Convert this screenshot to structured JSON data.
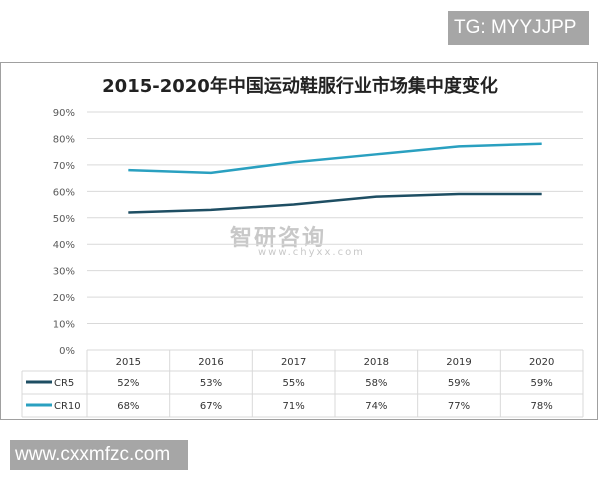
{
  "watermark_tag": "TG: MYYJJPP",
  "watermark_site": "www.cxxmfzc.com",
  "watermark_center": {
    "name": "智研咨询",
    "url": "www.chyxx.com"
  },
  "chart_data": {
    "type": "line",
    "title": "2015-2020年中国运动鞋服行业市场集中度变化",
    "categories": [
      "2015",
      "2016",
      "2017",
      "2018",
      "2019",
      "2020"
    ],
    "ylim": [
      0,
      90
    ],
    "yticks": [
      "0%",
      "10%",
      "20%",
      "30%",
      "40%",
      "50%",
      "60%",
      "70%",
      "80%",
      "90%"
    ],
    "grid": true,
    "legend": "data-table",
    "series": [
      {
        "name": "CR5",
        "values": [
          52,
          53,
          55,
          58,
          59,
          59
        ],
        "labels": [
          "52%",
          "53%",
          "55%",
          "58%",
          "59%",
          "59%"
        ],
        "color": "#1e4e63"
      },
      {
        "name": "CR10",
        "values": [
          68,
          67,
          71,
          74,
          77,
          78
        ],
        "labels": [
          "68%",
          "67%",
          "71%",
          "74%",
          "77%",
          "78%"
        ],
        "color": "#2aa0c0"
      }
    ]
  }
}
